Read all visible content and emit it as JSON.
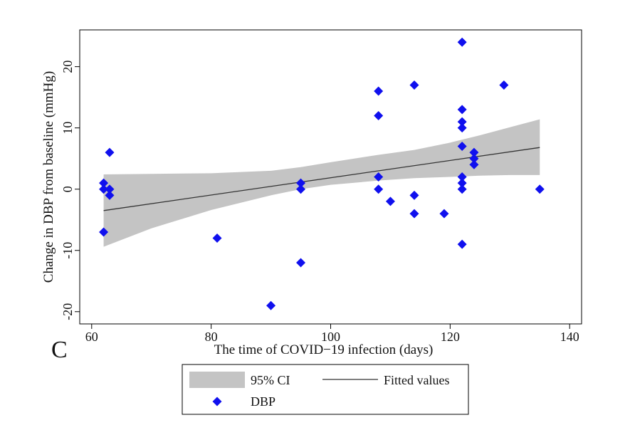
{
  "panel_label": "C",
  "chart_data": {
    "type": "scatter",
    "xlabel": "The time of COVID−19 infection (days)",
    "ylabel": "Change in DBP from baseline (mmHg)",
    "xlim": [
      58,
      142
    ],
    "ylim": [
      -22,
      26
    ],
    "xticks": [
      60,
      80,
      100,
      120,
      140
    ],
    "yticks": [
      -20,
      -10,
      0,
      10,
      20
    ],
    "grid": false,
    "legend_position": "bottom",
    "series": [
      {
        "name": "DBP",
        "kind": "points",
        "marker": "diamond",
        "color": "#1010ee",
        "points": [
          [
            62,
            1
          ],
          [
            62,
            0
          ],
          [
            62,
            -7
          ],
          [
            63,
            0
          ],
          [
            63,
            -1
          ],
          [
            63,
            6
          ],
          [
            81,
            -8
          ],
          [
            90,
            -19
          ],
          [
            95,
            1
          ],
          [
            95,
            0
          ],
          [
            95,
            -12
          ],
          [
            108,
            16
          ],
          [
            108,
            12
          ],
          [
            108,
            2
          ],
          [
            108,
            0
          ],
          [
            110,
            -2
          ],
          [
            114,
            17
          ],
          [
            114,
            -1
          ],
          [
            114,
            -4
          ],
          [
            119,
            -4
          ],
          [
            122,
            24
          ],
          [
            122,
            13
          ],
          [
            122,
            11
          ],
          [
            122,
            10
          ],
          [
            122,
            7
          ],
          [
            122,
            2
          ],
          [
            122,
            1
          ],
          [
            122,
            0
          ],
          [
            122,
            -9
          ],
          [
            124,
            6
          ],
          [
            124,
            5
          ],
          [
            124,
            4
          ],
          [
            129,
            17
          ],
          [
            135,
            0
          ]
        ]
      },
      {
        "name": "Fitted values",
        "kind": "line",
        "color": "#333333",
        "x": [
          62,
          135
        ],
        "y": [
          -3.5,
          6.8
        ]
      },
      {
        "name": "95% CI",
        "kind": "band",
        "color": "#c4c4c4",
        "x": [
          62,
          70,
          80,
          90,
          95,
          100,
          108,
          114,
          120,
          125,
          130,
          135
        ],
        "lower": [
          -9.4,
          -6.4,
          -3.4,
          -1.0,
          0.0,
          0.7,
          1.4,
          1.8,
          2.0,
          2.2,
          2.3,
          2.3
        ],
        "upper": [
          2.4,
          2.5,
          2.6,
          3.0,
          3.6,
          4.4,
          5.6,
          6.4,
          7.6,
          8.8,
          10.1,
          11.4
        ]
      }
    ]
  }
}
